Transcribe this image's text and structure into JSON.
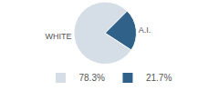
{
  "chart_data": {
    "type": "pie",
    "categories": [
      "WHITE",
      "A.I."
    ],
    "values": [
      78.3,
      21.7
    ],
    "value_labels": [
      "78.3%",
      "21.7%"
    ],
    "colors": [
      "#d5dde6",
      "#2f6189"
    ],
    "legend": "bottom"
  }
}
